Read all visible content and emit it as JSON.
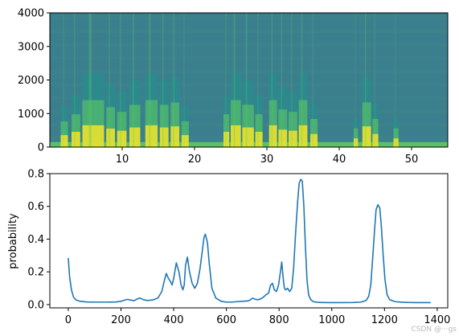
{
  "watermark": "CSDN @···gs",
  "chart_data": [
    {
      "type": "heatmap",
      "title": "",
      "xlabel": "",
      "ylabel": "",
      "xlim": [
        0,
        55
      ],
      "ylim": [
        0,
        4000
      ],
      "x_ticks": [
        10,
        20,
        30,
        40,
        50
      ],
      "y_ticks": [
        0,
        1000,
        2000,
        3000,
        4000
      ],
      "colormap": [
        "#440154",
        "#3b528b",
        "#21918c",
        "#5ec962",
        "#fde725"
      ],
      "background_color": "#3b7f8e",
      "voiced_segments": [
        [
          1.5,
          2.5,
          0.55
        ],
        [
          3.0,
          4.2,
          0.7
        ],
        [
          4.5,
          7.5,
          1.0
        ],
        [
          7.8,
          9.0,
          0.85
        ],
        [
          9.3,
          10.6,
          0.75
        ],
        [
          11.0,
          12.5,
          0.9
        ],
        [
          13.2,
          14.9,
          1.0
        ],
        [
          15.2,
          16.4,
          0.9
        ],
        [
          16.7,
          17.9,
          0.95
        ],
        [
          18.2,
          19.2,
          0.55
        ],
        [
          24.0,
          24.8,
          0.7
        ],
        [
          25.0,
          26.4,
          1.0
        ],
        [
          26.6,
          28.2,
          0.9
        ],
        [
          28.4,
          29.4,
          0.7
        ],
        [
          30.3,
          31.4,
          1.0
        ],
        [
          31.6,
          32.8,
          0.8
        ],
        [
          33.0,
          34.2,
          0.75
        ],
        [
          34.4,
          35.6,
          1.0
        ],
        [
          36.0,
          37.0,
          0.6
        ],
        [
          42.0,
          42.6,
          0.4
        ],
        [
          43.2,
          44.4,
          0.95
        ],
        [
          44.6,
          45.4,
          0.6
        ],
        [
          47.5,
          48.2,
          0.4
        ]
      ]
    },
    {
      "type": "line",
      "title": "",
      "xlabel": "",
      "ylabel": "probability",
      "xlim": [
        -70,
        1440
      ],
      "ylim": [
        -0.02,
        0.8
      ],
      "x_ticks": [
        0,
        200,
        400,
        600,
        800,
        1000,
        1200,
        1400
      ],
      "y_ticks": [
        0.0,
        0.2,
        0.4,
        0.6,
        0.8
      ],
      "y_tick_labels": [
        "0.0",
        "0.2",
        "0.4",
        "0.6",
        "0.8"
      ],
      "line_color": "#1f77b4",
      "series": [
        {
          "x": [
            0,
            5,
            12,
            20,
            30,
            45,
            70,
            100,
            140,
            180,
            200,
            215,
            225,
            235,
            250,
            262,
            272,
            285,
            300,
            320,
            340,
            355,
            365,
            372,
            380,
            388,
            394,
            400,
            410,
            420,
            428,
            435,
            440,
            445,
            452,
            460,
            470,
            480,
            490,
            500,
            508,
            515,
            520,
            528,
            535,
            545,
            560,
            580,
            600,
            620,
            640,
            660,
            680,
            690,
            700,
            710,
            720,
            730,
            740,
            750,
            760,
            768,
            775,
            782,
            790,
            798,
            805,
            810,
            815,
            820,
            825,
            832,
            840,
            848,
            855,
            862,
            870,
            876,
            882,
            888,
            894,
            900,
            906,
            912,
            920,
            930,
            945,
            960,
            990,
            1030,
            1080,
            1110,
            1130,
            1140,
            1148,
            1155,
            1162,
            1168,
            1175,
            1182,
            1188,
            1195,
            1202,
            1210,
            1220,
            1240,
            1270,
            1320,
            1375
          ],
          "y": [
            0.285,
            0.17,
            0.09,
            0.045,
            0.028,
            0.02,
            0.016,
            0.015,
            0.015,
            0.016,
            0.02,
            0.028,
            0.032,
            0.028,
            0.024,
            0.035,
            0.04,
            0.03,
            0.025,
            0.028,
            0.04,
            0.08,
            0.15,
            0.19,
            0.16,
            0.14,
            0.12,
            0.16,
            0.255,
            0.2,
            0.12,
            0.09,
            0.12,
            0.24,
            0.29,
            0.2,
            0.13,
            0.1,
            0.13,
            0.22,
            0.32,
            0.41,
            0.43,
            0.38,
            0.25,
            0.1,
            0.04,
            0.02,
            0.015,
            0.015,
            0.018,
            0.02,
            0.022,
            0.028,
            0.04,
            0.032,
            0.03,
            0.035,
            0.045,
            0.06,
            0.07,
            0.12,
            0.13,
            0.09,
            0.08,
            0.12,
            0.2,
            0.26,
            0.17,
            0.1,
            0.09,
            0.1,
            0.08,
            0.1,
            0.22,
            0.42,
            0.62,
            0.74,
            0.765,
            0.755,
            0.6,
            0.35,
            0.15,
            0.06,
            0.03,
            0.018,
            0.014,
            0.013,
            0.012,
            0.012,
            0.013,
            0.015,
            0.025,
            0.05,
            0.12,
            0.28,
            0.45,
            0.58,
            0.61,
            0.59,
            0.48,
            0.3,
            0.15,
            0.06,
            0.03,
            0.018,
            0.014,
            0.012,
            0.012
          ]
        }
      ]
    }
  ]
}
